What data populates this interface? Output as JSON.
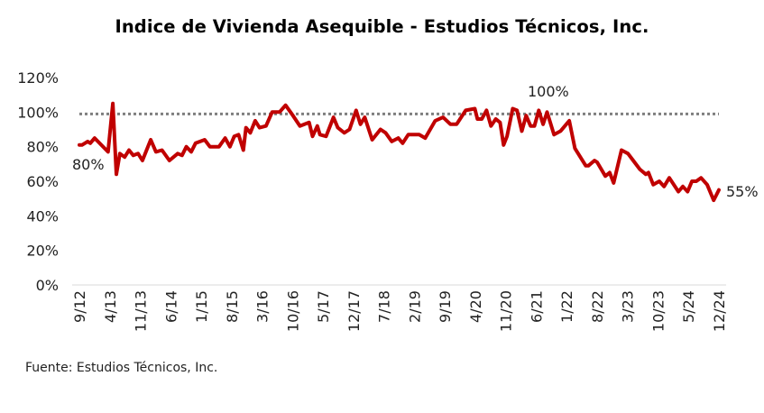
{
  "chart_data": {
    "type": "line",
    "title": "Indice de Vivienda Asequible - Estudios Técnicos, Inc.",
    "source": "Fuente: Estudios Técnicos, Inc.",
    "xlabel": "",
    "ylabel": "",
    "x_unit": "months since 9/12",
    "xlim": [
      0,
      147
    ],
    "ylim": [
      0,
      120
    ],
    "y_ticks": [
      0,
      20,
      40,
      60,
      80,
      100,
      120
    ],
    "y_tick_labels": [
      "0%",
      "20%",
      "40%",
      "60%",
      "80%",
      "100%",
      "120%"
    ],
    "x_tick_labels": [
      "9/12",
      "4/13",
      "11/13",
      "6/14",
      "1/15",
      "8/15",
      "3/16",
      "10/16",
      "5/17",
      "12/17",
      "7/18",
      "2/19",
      "9/19",
      "4/20",
      "11/20",
      "6/21",
      "1/22",
      "8/22",
      "3/23",
      "10/23",
      "5/24",
      "12/24"
    ],
    "x_tick_step_months": 7,
    "grid": false,
    "reference_line": {
      "value": 100,
      "style": "dotted",
      "color": "#7f7f7f"
    },
    "series": [
      {
        "name": "Indice de Vivienda Asequible",
        "color": "#C00000",
        "points": [
          [
            0,
            81
          ],
          [
            0.6,
            81
          ],
          [
            1.9,
            83
          ],
          [
            2.5,
            82
          ],
          [
            3.5,
            85
          ],
          [
            6.6,
            77
          ],
          [
            7.7,
            105
          ],
          [
            8.5,
            64
          ],
          [
            9.3,
            76
          ],
          [
            10.4,
            74
          ],
          [
            11.4,
            78
          ],
          [
            12.4,
            75
          ],
          [
            13.5,
            76
          ],
          [
            14.5,
            72
          ],
          [
            16.4,
            84
          ],
          [
            17.6,
            77
          ],
          [
            19.0,
            78
          ],
          [
            20.7,
            72
          ],
          [
            22.6,
            76
          ],
          [
            23.6,
            75
          ],
          [
            24.6,
            80
          ],
          [
            25.7,
            77
          ],
          [
            26.7,
            82
          ],
          [
            28.8,
            84
          ],
          [
            30.0,
            80
          ],
          [
            32.1,
            80
          ],
          [
            33.5,
            85
          ],
          [
            34.6,
            80
          ],
          [
            35.6,
            86
          ],
          [
            36.6,
            87
          ],
          [
            37.7,
            78
          ],
          [
            38.3,
            91
          ],
          [
            39.3,
            88
          ],
          [
            40.4,
            95
          ],
          [
            41.4,
            91
          ],
          [
            42.9,
            92
          ],
          [
            44.3,
            100
          ],
          [
            46.0,
            100
          ],
          [
            47.4,
            104
          ],
          [
            49.1,
            98
          ],
          [
            50.7,
            92
          ],
          [
            52.8,
            94
          ],
          [
            53.6,
            86
          ],
          [
            54.7,
            92
          ],
          [
            55.3,
            87
          ],
          [
            56.7,
            86
          ],
          [
            58.4,
            97
          ],
          [
            59.4,
            91
          ],
          [
            60.9,
            88
          ],
          [
            62.1,
            90
          ],
          [
            63.6,
            101
          ],
          [
            64.6,
            93
          ],
          [
            65.6,
            97
          ],
          [
            67.3,
            84
          ],
          [
            69.2,
            90
          ],
          [
            70.4,
            88
          ],
          [
            71.8,
            83
          ],
          [
            73.3,
            85
          ],
          [
            74.3,
            82
          ],
          [
            75.6,
            87
          ],
          [
            78.1,
            87
          ],
          [
            79.5,
            85
          ],
          [
            81.8,
            95
          ],
          [
            83.6,
            97
          ],
          [
            85.3,
            93
          ],
          [
            86.7,
            93
          ],
          [
            88.8,
            101
          ],
          [
            90.9,
            102
          ],
          [
            91.5,
            96
          ],
          [
            92.5,
            96
          ],
          [
            93.6,
            101
          ],
          [
            94.6,
            92
          ],
          [
            95.7,
            96
          ],
          [
            96.7,
            94
          ],
          [
            97.5,
            81
          ],
          [
            98.3,
            86
          ],
          [
            99.6,
            102
          ],
          [
            100.6,
            101
          ],
          [
            101.7,
            89
          ],
          [
            102.7,
            98
          ],
          [
            103.7,
            92
          ],
          [
            104.6,
            92
          ],
          [
            105.6,
            101
          ],
          [
            106.6,
            93
          ],
          [
            107.5,
            100
          ],
          [
            109.1,
            87
          ],
          [
            110.6,
            89
          ],
          [
            112.6,
            95
          ],
          [
            113.9,
            79
          ],
          [
            116.4,
            69
          ],
          [
            117.0,
            69
          ],
          [
            118.4,
            72
          ],
          [
            119.0,
            71
          ],
          [
            120.9,
            63
          ],
          [
            121.9,
            65
          ],
          [
            122.8,
            59
          ],
          [
            124.6,
            78
          ],
          [
            126.1,
            76
          ],
          [
            127.3,
            72
          ],
          [
            128.8,
            67
          ],
          [
            130.2,
            64
          ],
          [
            130.8,
            65
          ],
          [
            131.9,
            58
          ],
          [
            133.3,
            60
          ],
          [
            134.4,
            57
          ],
          [
            135.6,
            62
          ],
          [
            137.7,
            54
          ],
          [
            138.7,
            57
          ],
          [
            139.8,
            54
          ],
          [
            140.8,
            60
          ],
          [
            141.8,
            60
          ],
          [
            142.9,
            62
          ],
          [
            144.3,
            58
          ],
          [
            145.8,
            49
          ],
          [
            147,
            55
          ]
        ]
      }
    ],
    "annotations": [
      {
        "text": "80%",
        "near": "start"
      },
      {
        "text": "100%",
        "near": "6/21 peak"
      },
      {
        "text": "55%",
        "near": "end"
      }
    ]
  }
}
